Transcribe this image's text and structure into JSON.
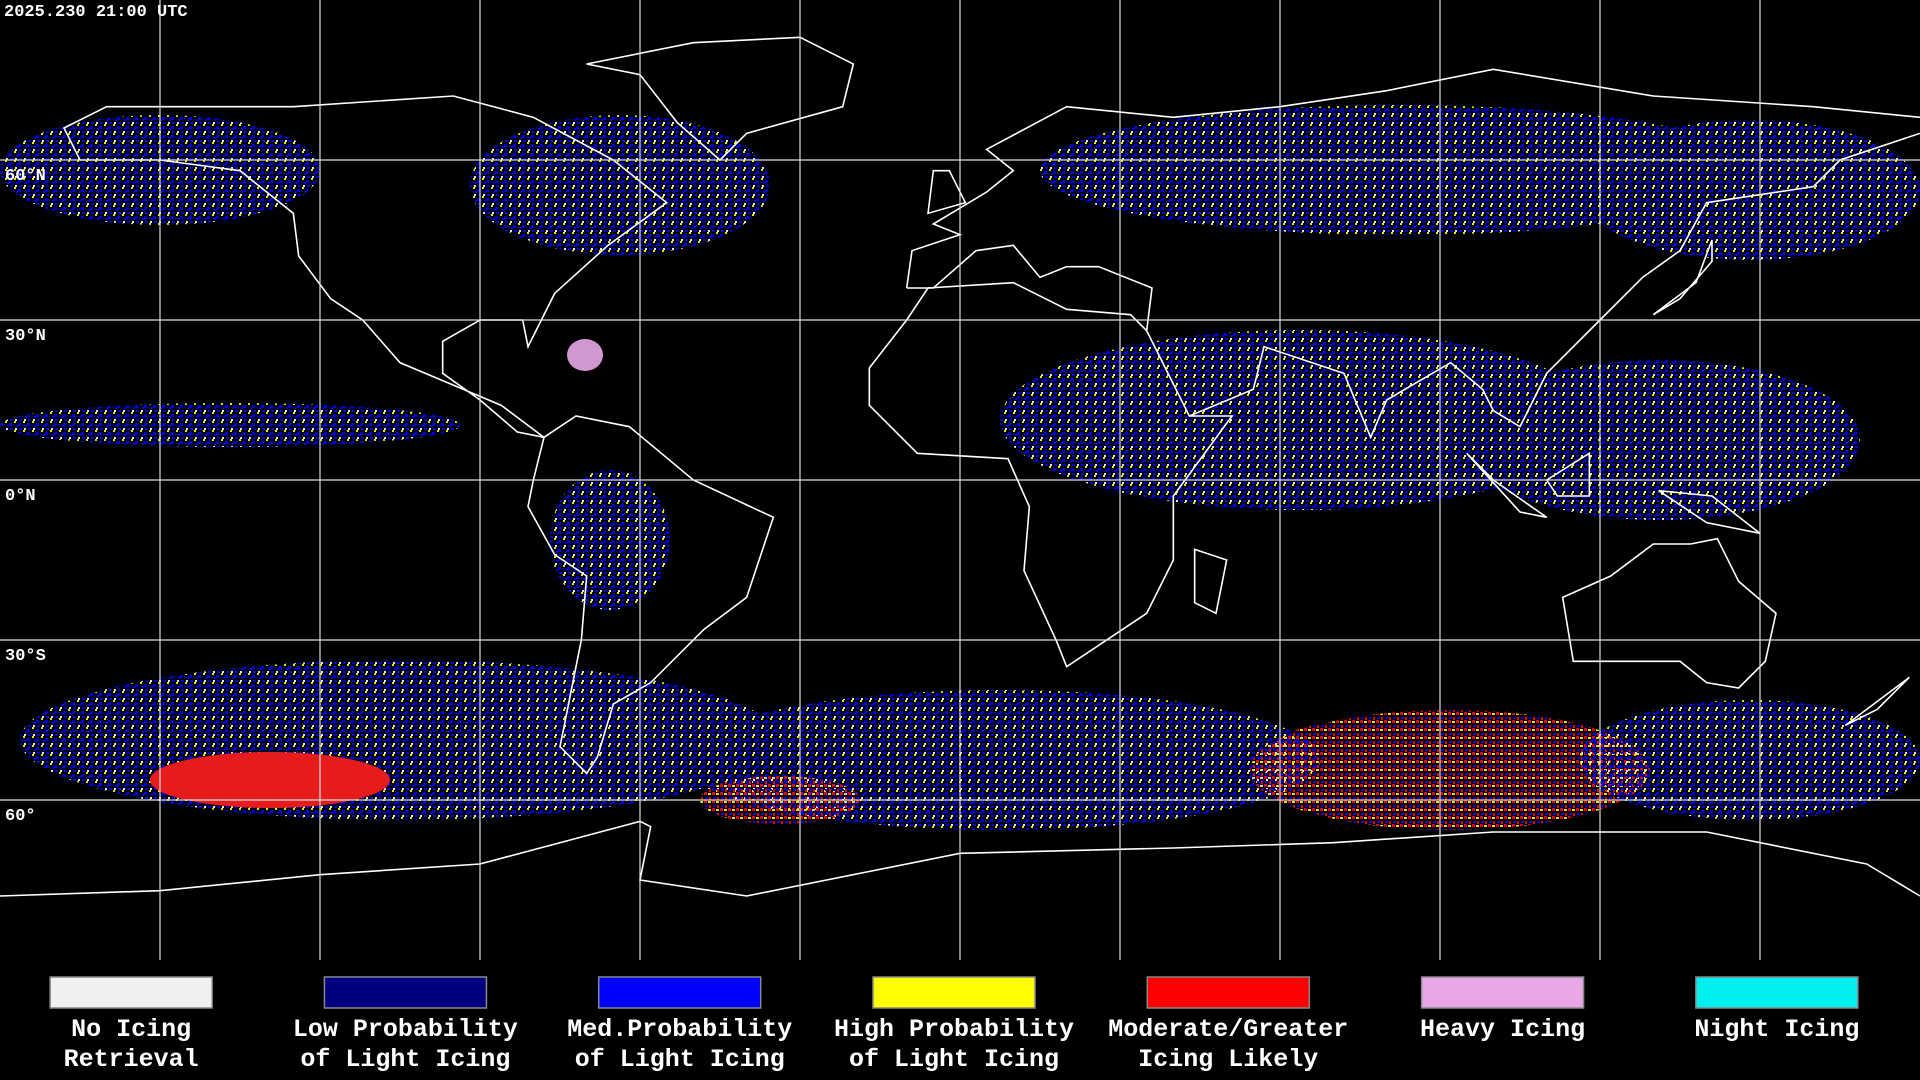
{
  "timestamp": "2025.230 21:00 UTC",
  "latitude_labels": [
    "60°N",
    "30°N",
    "0°N",
    "30°S",
    "60°"
  ],
  "legend": [
    {
      "color": "#f0f0f0",
      "lines": [
        "No Icing",
        "Retrieval"
      ]
    },
    {
      "color": "#000080",
      "lines": [
        "Low Probability",
        "of Light Icing"
      ]
    },
    {
      "color": "#0000ff",
      "lines": [
        "Med.Probability",
        "of Light Icing"
      ]
    },
    {
      "color": "#ffff00",
      "lines": [
        "High Probability",
        "of Light Icing"
      ]
    },
    {
      "color": "#ff0000",
      "lines": [
        "Moderate/Greater",
        "Icing Likely"
      ]
    },
    {
      "color": "#e8a8e8",
      "lines": [
        "Heavy Icing"
      ]
    },
    {
      "color": "#00f0f0",
      "lines": [
        "Night Icing"
      ]
    }
  ]
}
